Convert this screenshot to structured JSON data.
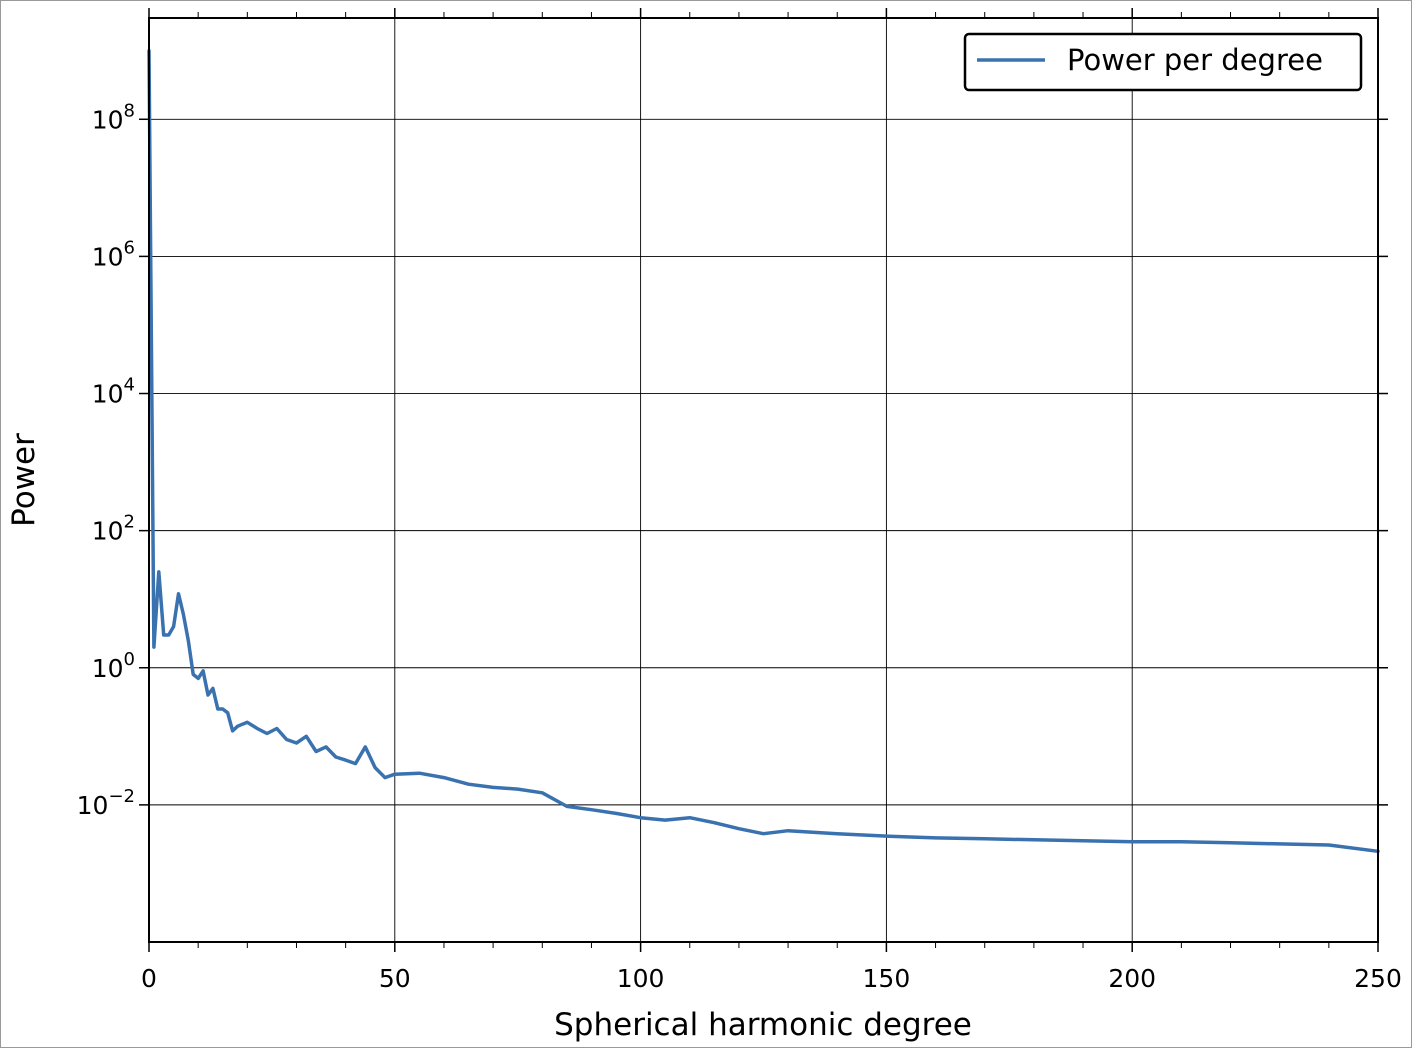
{
  "chart_data": {
    "type": "line",
    "title": "",
    "xlabel": "Spherical harmonic degree",
    "ylabel": "Power",
    "xscale": "linear",
    "yscale": "log",
    "xlim": [
      0,
      250
    ],
    "ylim": [
      0.0001,
      3000000000
    ],
    "grid": true,
    "legend_position": "top-right",
    "x_ticks": [
      {
        "value": 0,
        "label": "0"
      },
      {
        "value": 50,
        "label": "50"
      },
      {
        "value": 100,
        "label": "100"
      },
      {
        "value": 150,
        "label": "150"
      },
      {
        "value": 200,
        "label": "200"
      },
      {
        "value": 250,
        "label": "250"
      }
    ],
    "y_ticks": [
      {
        "value": 0.01,
        "base": "10",
        "exp": "−2"
      },
      {
        "value": 1,
        "base": "10",
        "exp": "0"
      },
      {
        "value": 100,
        "base": "10",
        "exp": "2"
      },
      {
        "value": 10000,
        "base": "10",
        "exp": "4"
      },
      {
        "value": 1000000,
        "base": "10",
        "exp": "6"
      },
      {
        "value": 100000000,
        "base": "10",
        "exp": "8"
      }
    ],
    "series": [
      {
        "name": "Power per degree",
        "color": "#3a72b0",
        "x": [
          0,
          1,
          2,
          3,
          4,
          5,
          6,
          7,
          8,
          9,
          10,
          11,
          12,
          13,
          14,
          15,
          16,
          17,
          18,
          19,
          20,
          22,
          24,
          26,
          28,
          30,
          32,
          34,
          36,
          38,
          40,
          42,
          44,
          46,
          48,
          50,
          55,
          60,
          65,
          70,
          75,
          80,
          85,
          90,
          95,
          100,
          105,
          110,
          115,
          120,
          125,
          130,
          140,
          150,
          160,
          170,
          180,
          190,
          200,
          210,
          220,
          230,
          240,
          250
        ],
        "y": [
          1000000000,
          2,
          25,
          3,
          3,
          4,
          12,
          6,
          2.5,
          0.8,
          0.7,
          0.9,
          0.4,
          0.5,
          0.25,
          0.25,
          0.22,
          0.12,
          0.14,
          0.15,
          0.16,
          0.13,
          0.11,
          0.13,
          0.09,
          0.08,
          0.1,
          0.06,
          0.07,
          0.05,
          0.045,
          0.04,
          0.07,
          0.035,
          0.025,
          0.028,
          0.029,
          0.025,
          0.02,
          0.018,
          0.017,
          0.015,
          0.0095,
          0.0085,
          0.0075,
          0.0065,
          0.006,
          0.0065,
          0.0055,
          0.0045,
          0.0038,
          0.0042,
          0.0038,
          0.0035,
          0.0033,
          0.0032,
          0.0031,
          0.003,
          0.0029,
          0.0029,
          0.0028,
          0.0027,
          0.0026,
          0.0021
        ]
      }
    ]
  }
}
